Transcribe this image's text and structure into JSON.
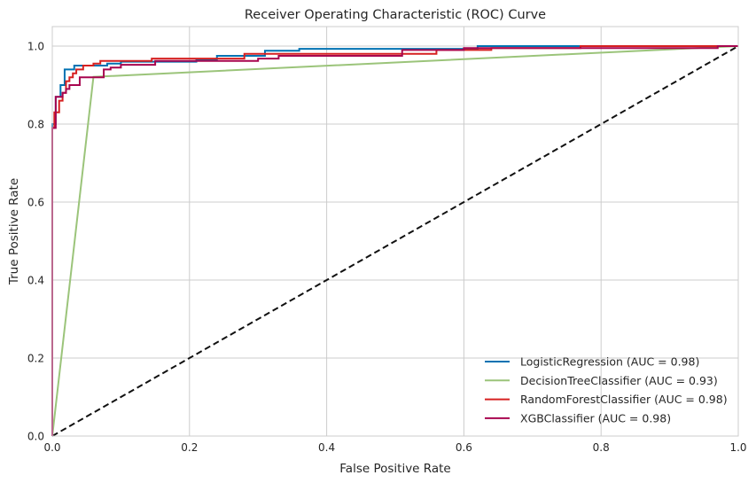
{
  "chart_data": {
    "type": "line",
    "title": "Receiver Operating Characteristic (ROC) Curve",
    "xlabel": "False Positive Rate",
    "ylabel": "True Positive Rate",
    "xlim": [
      0,
      1
    ],
    "ylim": [
      0,
      1.05
    ],
    "xticks": [
      "0.0",
      "0.2",
      "0.4",
      "0.6",
      "0.8",
      "1.0"
    ],
    "yticks": [
      "0.0",
      "0.2",
      "0.4",
      "0.6",
      "0.8",
      "1.0"
    ],
    "grid": true,
    "legend_position": "lower-right",
    "series": [
      {
        "name": "LogisticRegression (AUC = 0.98)",
        "color": "#0072b2",
        "points": [
          [
            0,
            0
          ],
          [
            0,
            0.8
          ],
          [
            0.005,
            0.8
          ],
          [
            0.005,
            0.87
          ],
          [
            0.012,
            0.87
          ],
          [
            0.012,
            0.9
          ],
          [
            0.018,
            0.9
          ],
          [
            0.018,
            0.94
          ],
          [
            0.032,
            0.94
          ],
          [
            0.032,
            0.95
          ],
          [
            0.08,
            0.95
          ],
          [
            0.08,
            0.955
          ],
          [
            0.1,
            0.955
          ],
          [
            0.1,
            0.96
          ],
          [
            0.21,
            0.96
          ],
          [
            0.21,
            0.965
          ],
          [
            0.24,
            0.965
          ],
          [
            0.24,
            0.975
          ],
          [
            0.31,
            0.975
          ],
          [
            0.31,
            0.988
          ],
          [
            0.36,
            0.988
          ],
          [
            0.36,
            0.993
          ],
          [
            0.62,
            0.993
          ],
          [
            0.62,
            1.0
          ],
          [
            1,
            1
          ]
        ]
      },
      {
        "name": "DecisionTreeClassifier (AUC = 0.93)",
        "color": "#9bc47a",
        "points": [
          [
            0,
            0
          ],
          [
            0.06,
            0.921
          ],
          [
            1,
            1
          ]
        ]
      },
      {
        "name": "RandomForestClassifier (AUC = 0.98)",
        "color": "#d62020",
        "points": [
          [
            0,
            0
          ],
          [
            0,
            0.79
          ],
          [
            0.003,
            0.79
          ],
          [
            0.003,
            0.83
          ],
          [
            0.01,
            0.83
          ],
          [
            0.01,
            0.86
          ],
          [
            0.015,
            0.86
          ],
          [
            0.015,
            0.88
          ],
          [
            0.02,
            0.88
          ],
          [
            0.02,
            0.91
          ],
          [
            0.025,
            0.91
          ],
          [
            0.025,
            0.92
          ],
          [
            0.03,
            0.92
          ],
          [
            0.03,
            0.93
          ],
          [
            0.035,
            0.93
          ],
          [
            0.035,
            0.94
          ],
          [
            0.045,
            0.94
          ],
          [
            0.045,
            0.95
          ],
          [
            0.06,
            0.95
          ],
          [
            0.06,
            0.955
          ],
          [
            0.07,
            0.955
          ],
          [
            0.07,
            0.962
          ],
          [
            0.145,
            0.962
          ],
          [
            0.145,
            0.968
          ],
          [
            0.28,
            0.968
          ],
          [
            0.28,
            0.98
          ],
          [
            0.56,
            0.98
          ],
          [
            0.56,
            0.99
          ],
          [
            0.64,
            0.99
          ],
          [
            0.64,
            0.995
          ],
          [
            0.77,
            0.995
          ],
          [
            0.77,
            1.0
          ],
          [
            1,
            1
          ]
        ]
      },
      {
        "name": "XGBClassifier (AUC = 0.98)",
        "color": "#a8054f",
        "points": [
          [
            0,
            0
          ],
          [
            0,
            0.79
          ],
          [
            0.005,
            0.79
          ],
          [
            0.005,
            0.87
          ],
          [
            0.015,
            0.87
          ],
          [
            0.015,
            0.88
          ],
          [
            0.02,
            0.88
          ],
          [
            0.02,
            0.89
          ],
          [
            0.025,
            0.89
          ],
          [
            0.025,
            0.9
          ],
          [
            0.04,
            0.9
          ],
          [
            0.04,
            0.92
          ],
          [
            0.075,
            0.92
          ],
          [
            0.075,
            0.94
          ],
          [
            0.085,
            0.94
          ],
          [
            0.085,
            0.945
          ],
          [
            0.1,
            0.945
          ],
          [
            0.1,
            0.952
          ],
          [
            0.15,
            0.952
          ],
          [
            0.15,
            0.962
          ],
          [
            0.3,
            0.962
          ],
          [
            0.3,
            0.968
          ],
          [
            0.33,
            0.968
          ],
          [
            0.33,
            0.975
          ],
          [
            0.51,
            0.975
          ],
          [
            0.51,
            0.99
          ],
          [
            0.6,
            0.99
          ],
          [
            0.6,
            0.995
          ],
          [
            0.97,
            0.995
          ],
          [
            0.97,
            1.0
          ],
          [
            1,
            1
          ]
        ]
      }
    ],
    "reference_line": {
      "style": "dashed",
      "color": "#111111",
      "points": [
        [
          0,
          0
        ],
        [
          1,
          1
        ]
      ]
    }
  }
}
